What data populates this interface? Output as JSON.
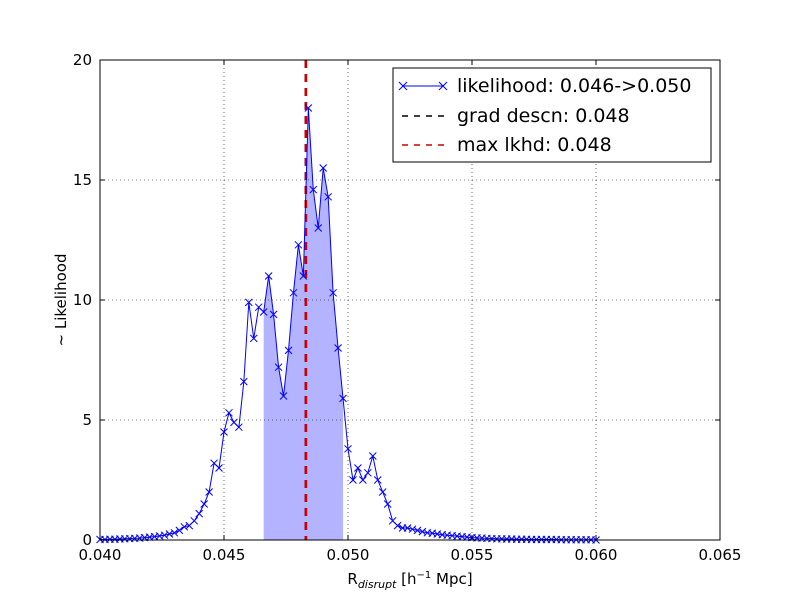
{
  "chart_data": {
    "type": "line",
    "xlabel": "R",
    "xlabel_sub": "disrupt",
    "xlabel_unit_pre": " [h",
    "xlabel_unit_sup": "−1",
    "xlabel_unit_post": " Mpc]",
    "ylabel": "~ Likelihood",
    "xlim": [
      0.04,
      0.065
    ],
    "ylim": [
      0,
      20
    ],
    "xticks": [
      0.04,
      0.045,
      0.05,
      0.055,
      0.06,
      0.065
    ],
    "xtick_labels": [
      "0.040",
      "0.045",
      "0.050",
      "0.055",
      "0.060",
      "0.065"
    ],
    "yticks": [
      0,
      5,
      10,
      15,
      20
    ],
    "ytick_labels": [
      "0",
      "5",
      "10",
      "15",
      "20"
    ],
    "grid": true,
    "legend_position": "top-right",
    "series": [
      {
        "name": "likelihood: 0.046->0.050",
        "color": "#0000ff",
        "marker": "x",
        "x": [
          0.04,
          0.0402,
          0.0404,
          0.0406,
          0.0408,
          0.041,
          0.0412,
          0.0414,
          0.0416,
          0.0418,
          0.042,
          0.0422,
          0.0424,
          0.0426,
          0.0428,
          0.043,
          0.0432,
          0.0434,
          0.0436,
          0.0438,
          0.044,
          0.0442,
          0.0444,
          0.0446,
          0.0448,
          0.045,
          0.0452,
          0.0454,
          0.0456,
          0.0458,
          0.046,
          0.0462,
          0.0464,
          0.0466,
          0.0468,
          0.047,
          0.0472,
          0.0474,
          0.0476,
          0.0478,
          0.048,
          0.0482,
          0.0484,
          0.0486,
          0.0488,
          0.049,
          0.0492,
          0.0494,
          0.0496,
          0.0498,
          0.05,
          0.0502,
          0.0504,
          0.0506,
          0.0508,
          0.051,
          0.0512,
          0.0514,
          0.0516,
          0.0518,
          0.052,
          0.0522,
          0.0524,
          0.0526,
          0.0528,
          0.053,
          0.0532,
          0.0534,
          0.0536,
          0.0538,
          0.054,
          0.0542,
          0.0544,
          0.0546,
          0.0548,
          0.055,
          0.0552,
          0.0554,
          0.0556,
          0.0558,
          0.056,
          0.0562,
          0.0564,
          0.0566,
          0.0568,
          0.057,
          0.0572,
          0.0574,
          0.0576,
          0.0578,
          0.058,
          0.0582,
          0.0584,
          0.0586,
          0.0588,
          0.059,
          0.0592,
          0.0594,
          0.0596,
          0.0598,
          0.06
        ],
        "y": [
          0.02,
          0.02,
          0.03,
          0.03,
          0.04,
          0.05,
          0.06,
          0.07,
          0.08,
          0.1,
          0.12,
          0.14,
          0.17,
          0.2,
          0.25,
          0.3,
          0.4,
          0.55,
          0.6,
          0.8,
          1.1,
          1.5,
          2.0,
          3.2,
          3.0,
          4.5,
          5.3,
          4.9,
          4.7,
          6.6,
          9.9,
          8.4,
          9.7,
          9.5,
          11.0,
          9.4,
          7.2,
          6.0,
          7.9,
          10.3,
          12.3,
          11.0,
          18.0,
          14.6,
          13.0,
          15.5,
          14.3,
          10.3,
          8.0,
          5.9,
          3.8,
          2.5,
          3.0,
          2.5,
          2.8,
          3.5,
          2.5,
          2.0,
          1.5,
          0.8,
          0.6,
          0.5,
          0.5,
          0.45,
          0.4,
          0.35,
          0.3,
          0.28,
          0.25,
          0.22,
          0.2,
          0.18,
          0.16,
          0.14,
          0.12,
          0.1,
          0.09,
          0.08,
          0.07,
          0.06,
          0.05,
          0.05,
          0.04,
          0.04,
          0.03,
          0.03,
          0.03,
          0.02,
          0.02,
          0.02,
          0.02,
          0.02,
          0.02,
          0.01,
          0.01,
          0.01,
          0.01,
          0.01,
          0.01,
          0.01,
          0.0
        ]
      },
      {
        "name": "grad descn: 0.048",
        "color": "#000000",
        "style": "dashed",
        "x_value": 0.0483
      },
      {
        "name": "max lkhd: 0.048",
        "color": "#cc0000",
        "style": "dashed",
        "x_value": 0.0483
      }
    ],
    "shaded_region": {
      "x_start": 0.0465,
      "x_end": 0.0498,
      "color": "#b3b3ff"
    }
  }
}
